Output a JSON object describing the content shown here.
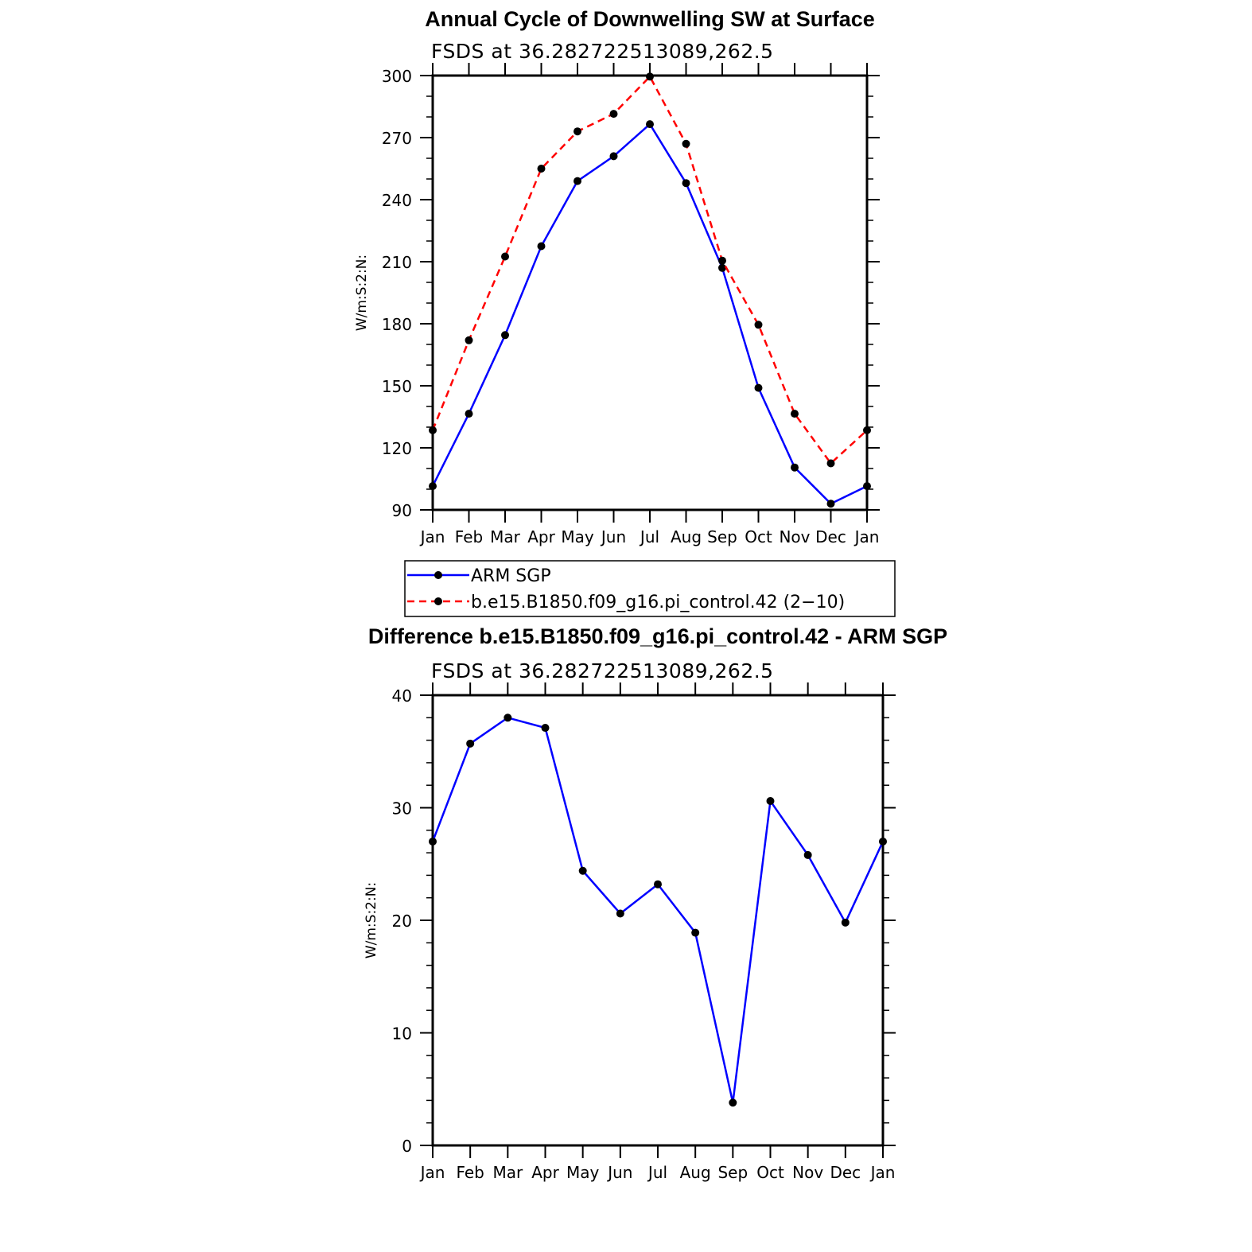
{
  "chart_data": [
    {
      "type": "line",
      "title": "Annual Cycle of Downwelling SW at Surface",
      "subtitle": "FSDS at 36.282722513089,262.5",
      "xlabel": "",
      "ylabel": "W/m:S:2:N:",
      "categories": [
        "Jan",
        "Feb",
        "Mar",
        "Apr",
        "May",
        "Jun",
        "Jul",
        "Aug",
        "Sep",
        "Oct",
        "Nov",
        "Dec",
        "Jan"
      ],
      "ylim": [
        90,
        300
      ],
      "yticks": [
        90,
        120,
        150,
        180,
        210,
        240,
        270,
        300
      ],
      "yminor_step": 10,
      "legend_position": "below",
      "series": [
        {
          "name": "ARM SGP",
          "color": "#0000ff",
          "dash": "solid",
          "values": [
            101.5,
            136.5,
            174.5,
            217.5,
            249,
            261,
            276.5,
            248,
            207,
            149,
            110.5,
            93,
            101.5
          ]
        },
        {
          "name": "b.e15.B1850.f09_g16.pi_control.42 (2−10)",
          "color": "#ff0000",
          "dash": "dashed",
          "values": [
            128.5,
            172,
            212.5,
            255,
            273,
            281.5,
            299.5,
            267,
            210.5,
            179.5,
            136.5,
            112.5,
            128.5
          ]
        }
      ]
    },
    {
      "type": "line",
      "title": "Difference b.e15.B1850.f09_g16.pi_control.42 - ARM SGP",
      "subtitle": "FSDS at 36.282722513089,262.5",
      "xlabel": "",
      "ylabel": "W/m:S:2:N:",
      "categories": [
        "Jan",
        "Feb",
        "Mar",
        "Apr",
        "May",
        "Jun",
        "Jul",
        "Aug",
        "Sep",
        "Oct",
        "Nov",
        "Dec",
        "Jan"
      ],
      "ylim": [
        0,
        40
      ],
      "yticks": [
        0,
        10,
        20,
        30,
        40
      ],
      "yminor_step": 2,
      "series": [
        {
          "color": "#0000ff",
          "dash": "solid",
          "values": [
            27,
            35.7,
            38,
            37.1,
            24.4,
            20.6,
            23.2,
            18.9,
            3.8,
            30.6,
            25.8,
            19.8,
            27
          ]
        }
      ]
    }
  ]
}
